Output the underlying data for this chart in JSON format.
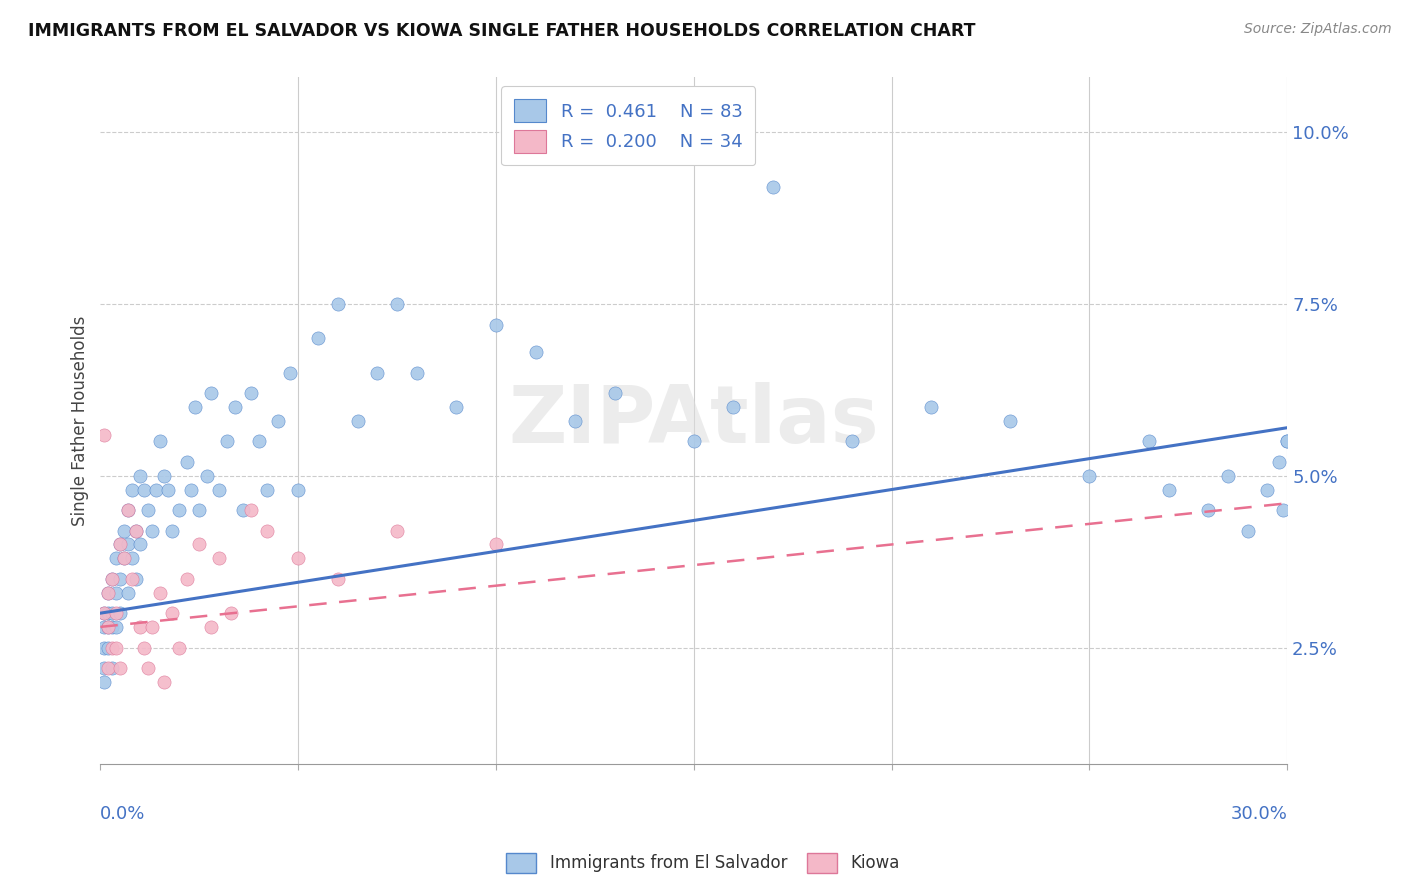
{
  "title": "IMMIGRANTS FROM EL SALVADOR VS KIOWA SINGLE FATHER HOUSEHOLDS CORRELATION CHART",
  "source": "Source: ZipAtlas.com",
  "ylabel": "Single Father Households",
  "ytick_vals": [
    0.025,
    0.05,
    0.075,
    0.1
  ],
  "ytick_labels": [
    "2.5%",
    "5.0%",
    "7.5%",
    "10.0%"
  ],
  "xmin": 0.0,
  "xmax": 0.3,
  "ymin": 0.008,
  "ymax": 0.108,
  "color_blue": "#a8c8e8",
  "color_pink": "#f4b8c8",
  "edge_blue": "#5588cc",
  "edge_pink": "#dd7799",
  "line_blue": "#4472c4",
  "line_pink": "#e87090",
  "label1": "Immigrants from El Salvador",
  "label2": "Kiowa",
  "legend_text1": "R =  0.461    N = 83",
  "legend_text2": "R =  0.200    N = 34",
  "blue_line_x": [
    0.0,
    0.3
  ],
  "blue_line_y": [
    0.03,
    0.057
  ],
  "pink_line_x": [
    0.0,
    0.3
  ],
  "pink_line_y": [
    0.028,
    0.046
  ],
  "blue_x": [
    0.001,
    0.001,
    0.001,
    0.001,
    0.001,
    0.002,
    0.002,
    0.002,
    0.002,
    0.003,
    0.003,
    0.003,
    0.003,
    0.004,
    0.004,
    0.004,
    0.005,
    0.005,
    0.005,
    0.006,
    0.006,
    0.007,
    0.007,
    0.007,
    0.008,
    0.008,
    0.009,
    0.009,
    0.01,
    0.01,
    0.011,
    0.012,
    0.013,
    0.014,
    0.015,
    0.016,
    0.017,
    0.018,
    0.02,
    0.022,
    0.023,
    0.024,
    0.025,
    0.027,
    0.028,
    0.03,
    0.032,
    0.034,
    0.036,
    0.038,
    0.04,
    0.042,
    0.045,
    0.048,
    0.05,
    0.055,
    0.06,
    0.065,
    0.07,
    0.075,
    0.08,
    0.09,
    0.1,
    0.11,
    0.12,
    0.13,
    0.15,
    0.16,
    0.17,
    0.19,
    0.21,
    0.23,
    0.25,
    0.265,
    0.27,
    0.28,
    0.285,
    0.29,
    0.295,
    0.298,
    0.299,
    0.3,
    0.3
  ],
  "blue_y": [
    0.03,
    0.028,
    0.025,
    0.022,
    0.02,
    0.033,
    0.03,
    0.028,
    0.025,
    0.035,
    0.03,
    0.028,
    0.022,
    0.038,
    0.033,
    0.028,
    0.04,
    0.035,
    0.03,
    0.042,
    0.038,
    0.045,
    0.04,
    0.033,
    0.048,
    0.038,
    0.042,
    0.035,
    0.05,
    0.04,
    0.048,
    0.045,
    0.042,
    0.048,
    0.055,
    0.05,
    0.048,
    0.042,
    0.045,
    0.052,
    0.048,
    0.06,
    0.045,
    0.05,
    0.062,
    0.048,
    0.055,
    0.06,
    0.045,
    0.062,
    0.055,
    0.048,
    0.058,
    0.065,
    0.048,
    0.07,
    0.075,
    0.058,
    0.065,
    0.075,
    0.065,
    0.06,
    0.072,
    0.068,
    0.058,
    0.062,
    0.055,
    0.06,
    0.092,
    0.055,
    0.06,
    0.058,
    0.05,
    0.055,
    0.048,
    0.045,
    0.05,
    0.042,
    0.048,
    0.052,
    0.045,
    0.055,
    0.055
  ],
  "pink_x": [
    0.001,
    0.001,
    0.002,
    0.002,
    0.002,
    0.003,
    0.003,
    0.004,
    0.004,
    0.005,
    0.005,
    0.006,
    0.007,
    0.008,
    0.009,
    0.01,
    0.011,
    0.012,
    0.013,
    0.015,
    0.016,
    0.018,
    0.02,
    0.022,
    0.025,
    0.028,
    0.03,
    0.033,
    0.038,
    0.042,
    0.05,
    0.06,
    0.075,
    0.1
  ],
  "pink_y": [
    0.03,
    0.056,
    0.033,
    0.028,
    0.022,
    0.025,
    0.035,
    0.03,
    0.025,
    0.04,
    0.022,
    0.038,
    0.045,
    0.035,
    0.042,
    0.028,
    0.025,
    0.022,
    0.028,
    0.033,
    0.02,
    0.03,
    0.025,
    0.035,
    0.04,
    0.028,
    0.038,
    0.03,
    0.045,
    0.042,
    0.038,
    0.035,
    0.042,
    0.04
  ]
}
